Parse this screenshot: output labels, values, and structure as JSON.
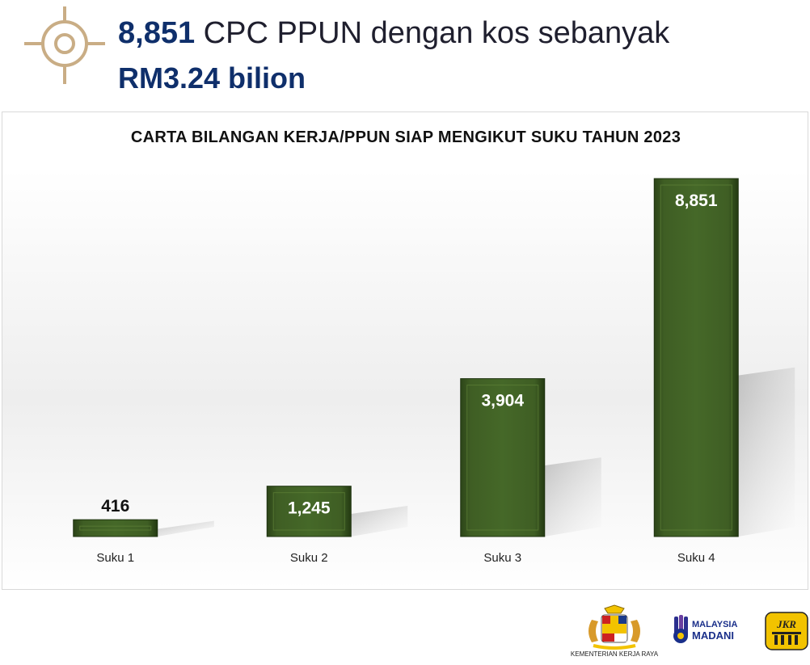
{
  "header": {
    "headline_number": "8,851",
    "headline_text": " CPC PPUN dengan kos sebanyak",
    "headline_line2": "RM3.24 bilion",
    "icon": "target-crosshair-icon"
  },
  "chart_data": {
    "type": "bar",
    "title": "CARTA BILANGAN KERJA/PPUN SIAP MENGIKUT SUKU TAHUN 2023",
    "categories": [
      "Suku 1",
      "Suku 2",
      "Suku 3",
      "Suku 4"
    ],
    "values": [
      416,
      1245,
      3904,
      8851
    ],
    "value_labels": [
      "416",
      "1,245",
      "3,904",
      "8,851"
    ],
    "xlabel": "",
    "ylabel": "",
    "ylim": [
      0,
      8851
    ],
    "grid": false,
    "legend": "none",
    "bar_color": "#3c5a22"
  },
  "footer": {
    "ministry": "KEMENTERIAN KERJA RAYA",
    "madani_line1": "MALAYSIA",
    "madani_line2": "MADANI",
    "jkr": "JKR"
  },
  "colors": {
    "accent_gold": "#c9ad85",
    "navy": "#0f2f6b",
    "bar_green": "#3c5a22",
    "jkr_yellow": "#f2c300"
  }
}
